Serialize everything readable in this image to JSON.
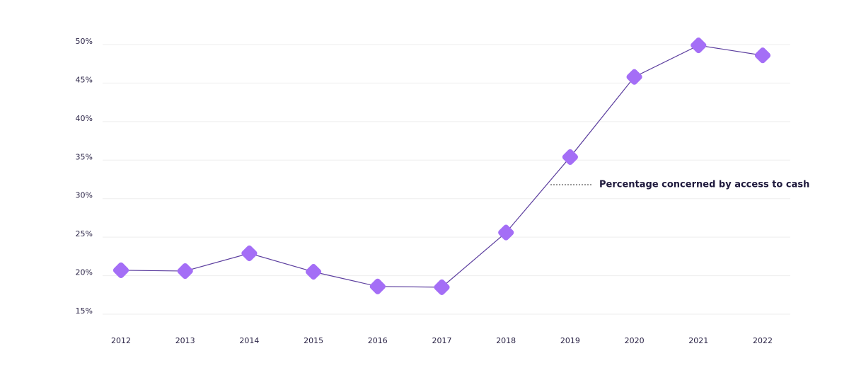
{
  "chart_data": {
    "type": "line",
    "categories": [
      "2012",
      "2013",
      "2014",
      "2015",
      "2016",
      "2017",
      "2018",
      "2019",
      "2020",
      "2021",
      "2022"
    ],
    "series": [
      {
        "name": "Percentage concerned by access to cash",
        "color": "#5b3d9e",
        "marker_color": "#a46ef6",
        "values": [
          20.7,
          20.6,
          22.9,
          20.5,
          18.6,
          18.5,
          25.6,
          35.4,
          45.8,
          49.9,
          48.6
        ]
      }
    ],
    "ylim": [
      15,
      50
    ],
    "yticks": [
      {
        "value": 15,
        "label": "15%"
      },
      {
        "value": 20,
        "label": "20%"
      },
      {
        "value": 25,
        "label": "25%"
      },
      {
        "value": 30,
        "label": "30%"
      },
      {
        "value": 35,
        "label": "35%"
      },
      {
        "value": 40,
        "label": "40%"
      },
      {
        "value": 45,
        "label": "45%"
      },
      {
        "value": 50,
        "label": "50%"
      }
    ],
    "grid": true
  }
}
